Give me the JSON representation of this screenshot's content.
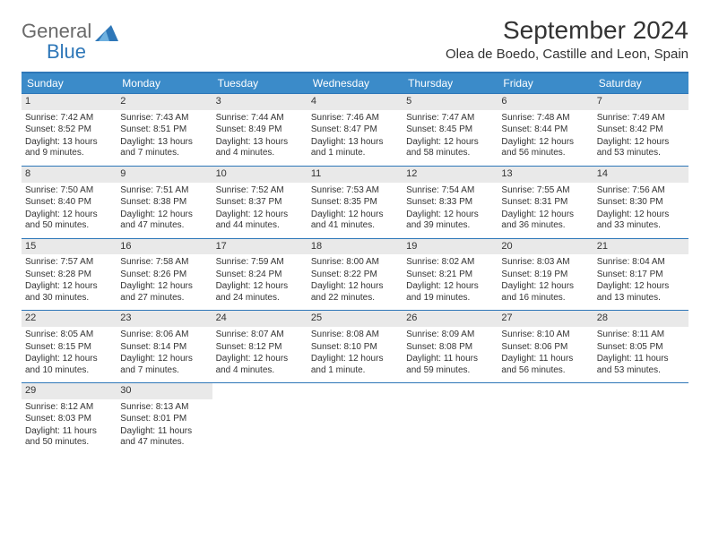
{
  "logo": {
    "part1": "General",
    "part2": "Blue"
  },
  "title": "September 2024",
  "location": "Olea de Boedo, Castille and Leon, Spain",
  "colors": {
    "header_bar": "#3b8bc9",
    "rule": "#2e77b8",
    "daynum_bg": "#e9e9e9",
    "text": "#333333",
    "logo_gray": "#6a6a6a",
    "logo_blue": "#2e77b8"
  },
  "daysOfWeek": [
    "Sunday",
    "Monday",
    "Tuesday",
    "Wednesday",
    "Thursday",
    "Friday",
    "Saturday"
  ],
  "weeks": [
    [
      {
        "n": "1",
        "sunrise": "7:42 AM",
        "sunset": "8:52 PM",
        "daylight": "13 hours and 9 minutes."
      },
      {
        "n": "2",
        "sunrise": "7:43 AM",
        "sunset": "8:51 PM",
        "daylight": "13 hours and 7 minutes."
      },
      {
        "n": "3",
        "sunrise": "7:44 AM",
        "sunset": "8:49 PM",
        "daylight": "13 hours and 4 minutes."
      },
      {
        "n": "4",
        "sunrise": "7:46 AM",
        "sunset": "8:47 PM",
        "daylight": "13 hours and 1 minute."
      },
      {
        "n": "5",
        "sunrise": "7:47 AM",
        "sunset": "8:45 PM",
        "daylight": "12 hours and 58 minutes."
      },
      {
        "n": "6",
        "sunrise": "7:48 AM",
        "sunset": "8:44 PM",
        "daylight": "12 hours and 56 minutes."
      },
      {
        "n": "7",
        "sunrise": "7:49 AM",
        "sunset": "8:42 PM",
        "daylight": "12 hours and 53 minutes."
      }
    ],
    [
      {
        "n": "8",
        "sunrise": "7:50 AM",
        "sunset": "8:40 PM",
        "daylight": "12 hours and 50 minutes."
      },
      {
        "n": "9",
        "sunrise": "7:51 AM",
        "sunset": "8:38 PM",
        "daylight": "12 hours and 47 minutes."
      },
      {
        "n": "10",
        "sunrise": "7:52 AM",
        "sunset": "8:37 PM",
        "daylight": "12 hours and 44 minutes."
      },
      {
        "n": "11",
        "sunrise": "7:53 AM",
        "sunset": "8:35 PM",
        "daylight": "12 hours and 41 minutes."
      },
      {
        "n": "12",
        "sunrise": "7:54 AM",
        "sunset": "8:33 PM",
        "daylight": "12 hours and 39 minutes."
      },
      {
        "n": "13",
        "sunrise": "7:55 AM",
        "sunset": "8:31 PM",
        "daylight": "12 hours and 36 minutes."
      },
      {
        "n": "14",
        "sunrise": "7:56 AM",
        "sunset": "8:30 PM",
        "daylight": "12 hours and 33 minutes."
      }
    ],
    [
      {
        "n": "15",
        "sunrise": "7:57 AM",
        "sunset": "8:28 PM",
        "daylight": "12 hours and 30 minutes."
      },
      {
        "n": "16",
        "sunrise": "7:58 AM",
        "sunset": "8:26 PM",
        "daylight": "12 hours and 27 minutes."
      },
      {
        "n": "17",
        "sunrise": "7:59 AM",
        "sunset": "8:24 PM",
        "daylight": "12 hours and 24 minutes."
      },
      {
        "n": "18",
        "sunrise": "8:00 AM",
        "sunset": "8:22 PM",
        "daylight": "12 hours and 22 minutes."
      },
      {
        "n": "19",
        "sunrise": "8:02 AM",
        "sunset": "8:21 PM",
        "daylight": "12 hours and 19 minutes."
      },
      {
        "n": "20",
        "sunrise": "8:03 AM",
        "sunset": "8:19 PM",
        "daylight": "12 hours and 16 minutes."
      },
      {
        "n": "21",
        "sunrise": "8:04 AM",
        "sunset": "8:17 PM",
        "daylight": "12 hours and 13 minutes."
      }
    ],
    [
      {
        "n": "22",
        "sunrise": "8:05 AM",
        "sunset": "8:15 PM",
        "daylight": "12 hours and 10 minutes."
      },
      {
        "n": "23",
        "sunrise": "8:06 AM",
        "sunset": "8:14 PM",
        "daylight": "12 hours and 7 minutes."
      },
      {
        "n": "24",
        "sunrise": "8:07 AM",
        "sunset": "8:12 PM",
        "daylight": "12 hours and 4 minutes."
      },
      {
        "n": "25",
        "sunrise": "8:08 AM",
        "sunset": "8:10 PM",
        "daylight": "12 hours and 1 minute."
      },
      {
        "n": "26",
        "sunrise": "8:09 AM",
        "sunset": "8:08 PM",
        "daylight": "11 hours and 59 minutes."
      },
      {
        "n": "27",
        "sunrise": "8:10 AM",
        "sunset": "8:06 PM",
        "daylight": "11 hours and 56 minutes."
      },
      {
        "n": "28",
        "sunrise": "8:11 AM",
        "sunset": "8:05 PM",
        "daylight": "11 hours and 53 minutes."
      }
    ],
    [
      {
        "n": "29",
        "sunrise": "8:12 AM",
        "sunset": "8:03 PM",
        "daylight": "11 hours and 50 minutes."
      },
      {
        "n": "30",
        "sunrise": "8:13 AM",
        "sunset": "8:01 PM",
        "daylight": "11 hours and 47 minutes."
      },
      null,
      null,
      null,
      null,
      null
    ]
  ],
  "labels": {
    "sunrise": "Sunrise:",
    "sunset": "Sunset:",
    "daylight": "Daylight:"
  }
}
